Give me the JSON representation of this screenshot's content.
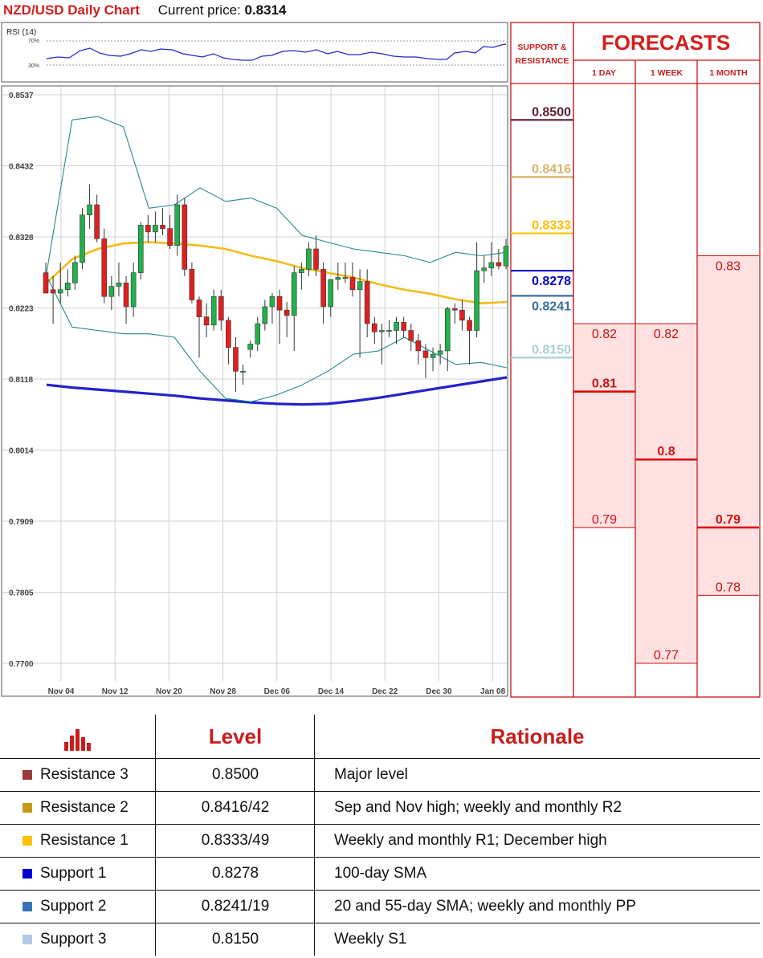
{
  "header": {
    "title": "NZD/USD Daily Chart",
    "current_price_label": "Current price:",
    "current_price_value": "0.8314"
  },
  "rsi": {
    "label": "RSI (14)",
    "levels": [
      "70%",
      "30%"
    ]
  },
  "sr_panel": {
    "title_line1": "SUPPORT &",
    "title_line2": "RESISTANCE",
    "levels": [
      {
        "value": "0.8500",
        "price": 0.85,
        "color": "#5a1a35"
      },
      {
        "value": "0.8416",
        "price": 0.8416,
        "color": "#d8b36a"
      },
      {
        "value": "0.8333",
        "price": 0.8333,
        "color": "#ffc000"
      },
      {
        "value": "0.8278",
        "price": 0.8278,
        "color": "#0000cc"
      },
      {
        "value": "0.8241",
        "price": 0.8241,
        "color": "#3a6f9a"
      },
      {
        "value": "0.8150",
        "price": 0.815,
        "color": "#a8d0d4"
      }
    ]
  },
  "forecasts": {
    "title": "FORECASTS",
    "columns": [
      {
        "label": "1 DAY",
        "high": "0.82",
        "mid": "0.81",
        "low": "0.79",
        "high_price": 0.82,
        "mid_price": 0.81,
        "low_price": 0.79
      },
      {
        "label": "1 WEEK",
        "high": "0.82",
        "mid": "0.8",
        "low": "0.77",
        "high_price": 0.82,
        "mid_price": 0.8,
        "low_price": 0.77
      },
      {
        "label": "1 MONTH",
        "high": "0.83",
        "mid": "0.79",
        "low": "0.78",
        "high_price": 0.83,
        "mid_price": 0.79,
        "low_price": 0.78
      }
    ],
    "band_color": "#ffe1e1",
    "mid_color": "#e00000"
  },
  "chart_data": {
    "type": "candlestick",
    "title": "NZD/USD Daily Chart",
    "x_tick_labels": [
      "Nov 04",
      "Nov 12",
      "Nov 20",
      "Nov 28",
      "Dec 06",
      "Dec 14",
      "Dec 22",
      "Dec 30",
      "Jan 08"
    ],
    "y_tick_labels": [
      "0.8537",
      "0.8432",
      "0.8328",
      "0.8223",
      "0.8118",
      "0.8014",
      "0.7909",
      "0.7805",
      "0.7700"
    ],
    "ylim": [
      0.77,
      0.8537
    ],
    "grid": true,
    "up_color": "#22b14c",
    "down_color": "#e02020",
    "candles": [
      [
        0.8275,
        0.829,
        0.825,
        0.8245
      ],
      [
        0.825,
        0.827,
        0.82,
        0.8245
      ],
      [
        0.8245,
        0.829,
        0.823,
        0.825
      ],
      [
        0.825,
        0.828,
        0.824,
        0.826
      ],
      [
        0.826,
        0.83,
        0.825,
        0.829
      ],
      [
        0.829,
        0.837,
        0.828,
        0.836
      ],
      [
        0.836,
        0.8405,
        0.834,
        0.8375
      ],
      [
        0.8375,
        0.839,
        0.832,
        0.8325
      ],
      [
        0.8325,
        0.834,
        0.823,
        0.824
      ],
      [
        0.824,
        0.827,
        0.822,
        0.8255
      ],
      [
        0.8255,
        0.829,
        0.824,
        0.826
      ],
      [
        0.826,
        0.827,
        0.82,
        0.8225
      ],
      [
        0.8225,
        0.829,
        0.821,
        0.8275
      ],
      [
        0.8275,
        0.835,
        0.8265,
        0.8345
      ],
      [
        0.8345,
        0.836,
        0.832,
        0.8335
      ],
      [
        0.8335,
        0.8365,
        0.832,
        0.8345
      ],
      [
        0.8345,
        0.837,
        0.833,
        0.834
      ],
      [
        0.834,
        0.836,
        0.831,
        0.8315
      ],
      [
        0.8315,
        0.839,
        0.83,
        0.8375
      ],
      [
        0.8375,
        0.8385,
        0.827,
        0.828
      ],
      [
        0.828,
        0.829,
        0.823,
        0.8235
      ],
      [
        0.8235,
        0.824,
        0.815,
        0.821
      ],
      [
        0.821,
        0.823,
        0.818,
        0.8198
      ],
      [
        0.8198,
        0.825,
        0.819,
        0.824
      ],
      [
        0.824,
        0.825,
        0.819,
        0.8205
      ],
      [
        0.8205,
        0.821,
        0.814,
        0.8165
      ],
      [
        0.8165,
        0.818,
        0.81,
        0.813
      ],
      [
        0.813,
        0.814,
        0.811,
        0.813
      ],
      [
        0.8162,
        0.8175,
        0.815,
        0.817
      ],
      [
        0.817,
        0.821,
        0.816,
        0.82
      ],
      [
        0.82,
        0.8235,
        0.819,
        0.8225
      ],
      [
        0.8225,
        0.8245,
        0.82,
        0.824
      ],
      [
        0.824,
        0.825,
        0.817,
        0.822
      ],
      [
        0.822,
        0.8232,
        0.818,
        0.8212
      ],
      [
        0.8212,
        0.8285,
        0.816,
        0.8275
      ],
      [
        0.8275,
        0.829,
        0.825,
        0.828
      ],
      [
        0.828,
        0.832,
        0.827,
        0.831
      ],
      [
        0.831,
        0.833,
        0.827,
        0.828
      ],
      [
        0.828,
        0.829,
        0.82,
        0.8225
      ],
      [
        0.8225,
        0.826,
        0.821,
        0.8265
      ],
      [
        0.8265,
        0.829,
        0.825,
        0.8268
      ],
      [
        0.8268,
        0.829,
        0.826,
        0.8268
      ],
      [
        0.8268,
        0.829,
        0.824,
        0.825
      ],
      [
        0.825,
        0.828,
        0.815,
        0.8262
      ],
      [
        0.8262,
        0.828,
        0.818,
        0.82
      ],
      [
        0.82,
        0.821,
        0.817,
        0.8188
      ],
      [
        0.8188,
        0.82,
        0.814,
        0.819
      ],
      [
        0.819,
        0.8205,
        0.818,
        0.819
      ],
      [
        0.819,
        0.821,
        0.817,
        0.8202
      ],
      [
        0.8202,
        0.821,
        0.818,
        0.819
      ],
      [
        0.819,
        0.82,
        0.816,
        0.8175
      ],
      [
        0.8175,
        0.8185,
        0.814,
        0.816
      ],
      [
        0.816,
        0.817,
        0.812,
        0.815
      ],
      [
        0.815,
        0.8165,
        0.813,
        0.8155
      ],
      [
        0.8155,
        0.817,
        0.814,
        0.816
      ],
      [
        0.816,
        0.8225,
        0.813,
        0.8222
      ],
      [
        0.8222,
        0.823,
        0.82,
        0.822
      ],
      [
        0.822,
        0.8235,
        0.819,
        0.8205
      ],
      [
        0.8205,
        0.821,
        0.814,
        0.819
      ],
      [
        0.819,
        0.832,
        0.818,
        0.8278
      ],
      [
        0.8278,
        0.83,
        0.826,
        0.8282
      ],
      [
        0.8282,
        0.832,
        0.827,
        0.829
      ],
      [
        0.829,
        0.831,
        0.828,
        0.8285
      ],
      [
        0.8285,
        0.8325,
        0.828,
        0.8314
      ]
    ],
    "series": [
      {
        "type": "sma_100",
        "color": "#2222cc",
        "values": [
          0.811,
          0.8106,
          0.8103,
          0.81,
          0.8097,
          0.8094,
          0.809,
          0.8087,
          0.8084,
          0.8082,
          0.8081,
          0.8082,
          0.8086,
          0.8091,
          0.8097,
          0.8103,
          0.8109,
          0.8115,
          0.8121
        ]
      },
      {
        "type": "sma_55",
        "color": "#f2bc1a",
        "values": [
          0.826,
          0.8295,
          0.831,
          0.8318,
          0.832,
          0.8318,
          0.8315,
          0.831,
          0.83,
          0.8292,
          0.8282,
          0.8275,
          0.8268,
          0.8258,
          0.825,
          0.8244,
          0.8236,
          0.823,
          0.8232
        ]
      },
      {
        "type": "bollinger_upper",
        "color": "#268a8a",
        "values": [
          0.8275,
          0.85,
          0.8505,
          0.849,
          0.837,
          0.8375,
          0.84,
          0.838,
          0.8385,
          0.837,
          0.833,
          0.832,
          0.831,
          0.8305,
          0.83,
          0.829,
          0.8305,
          0.83,
          0.8305
        ]
      },
      {
        "type": "bollinger_lower",
        "color": "#268a8a",
        "values": [
          0.827,
          0.8195,
          0.819,
          0.8185,
          0.8185,
          0.818,
          0.813,
          0.809,
          0.8085,
          0.8095,
          0.811,
          0.813,
          0.8155,
          0.816,
          0.818,
          0.816,
          0.814,
          0.8143,
          0.8135
        ]
      }
    ]
  },
  "table": {
    "icon": "bar-chart-icon",
    "headers": {
      "level": "Level",
      "rationale": "Rationale"
    },
    "rows": [
      {
        "name": "Resistance 3",
        "level": "0.8500",
        "rationale": "Major level",
        "color": "#9b3a3a"
      },
      {
        "name": "Resistance 2",
        "level": "0.8416/42",
        "rationale": "Sep and Nov high; weekly and monthly R2",
        "color": "#c89a1c"
      },
      {
        "name": "Resistance 1",
        "level": "0.8333/49",
        "rationale": "Weekly and monthly R1; December high",
        "color": "#ffc000"
      },
      {
        "name": "Support 1",
        "level": "0.8278",
        "rationale": "100-day SMA",
        "color": "#0000d0"
      },
      {
        "name": "Support 2",
        "level": "0.8241/19",
        "rationale": "20 and 55-day SMA; weekly and monthly PP",
        "color": "#3a74b8"
      },
      {
        "name": "Support 3",
        "level": "0.8150",
        "rationale": "Weekly S1",
        "color": "#b4c8e8"
      }
    ]
  }
}
